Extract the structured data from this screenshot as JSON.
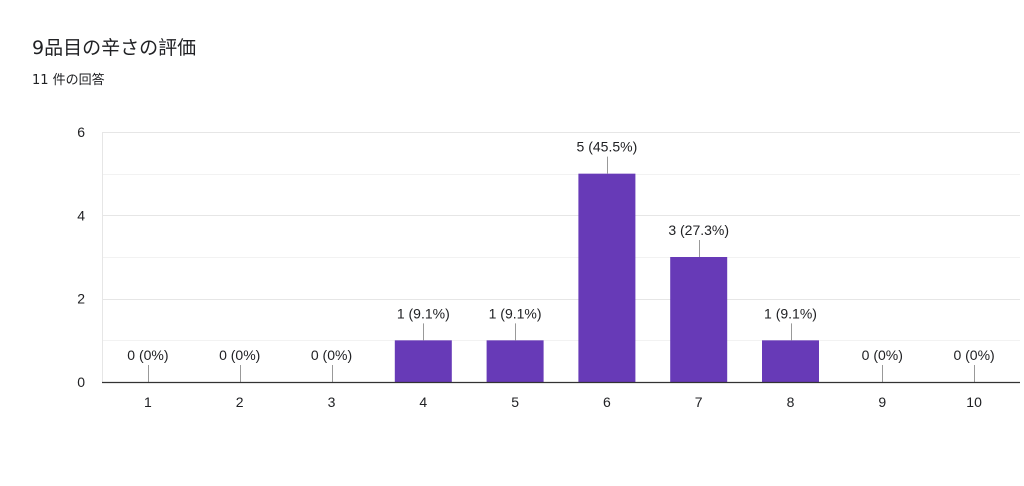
{
  "header": {
    "title": "9品目の辛さの評価",
    "subtitle": "11 件の回答"
  },
  "colors": {
    "bar": "#673ab7",
    "grid": "#ececec",
    "axis": "#333333",
    "leader": "#999999"
  },
  "chart_data": {
    "type": "bar",
    "title": "9品目の辛さの評価",
    "subtitle": "11 件の回答",
    "categories": [
      "1",
      "2",
      "3",
      "4",
      "5",
      "6",
      "7",
      "8",
      "9",
      "10"
    ],
    "values": [
      0,
      0,
      0,
      1,
      1,
      5,
      3,
      1,
      0,
      0
    ],
    "data_labels": [
      "0 (0%)",
      "0 (0%)",
      "0 (0%)",
      "1 (9.1%)",
      "1 (9.1%)",
      "5 (45.5%)",
      "3 (27.3%)",
      "1 (9.1%)",
      "0 (0%)",
      "0 (0%)"
    ],
    "ylim": [
      0,
      6
    ],
    "yticks": [
      0,
      2,
      4,
      6
    ],
    "grid": true,
    "legend": "none"
  }
}
